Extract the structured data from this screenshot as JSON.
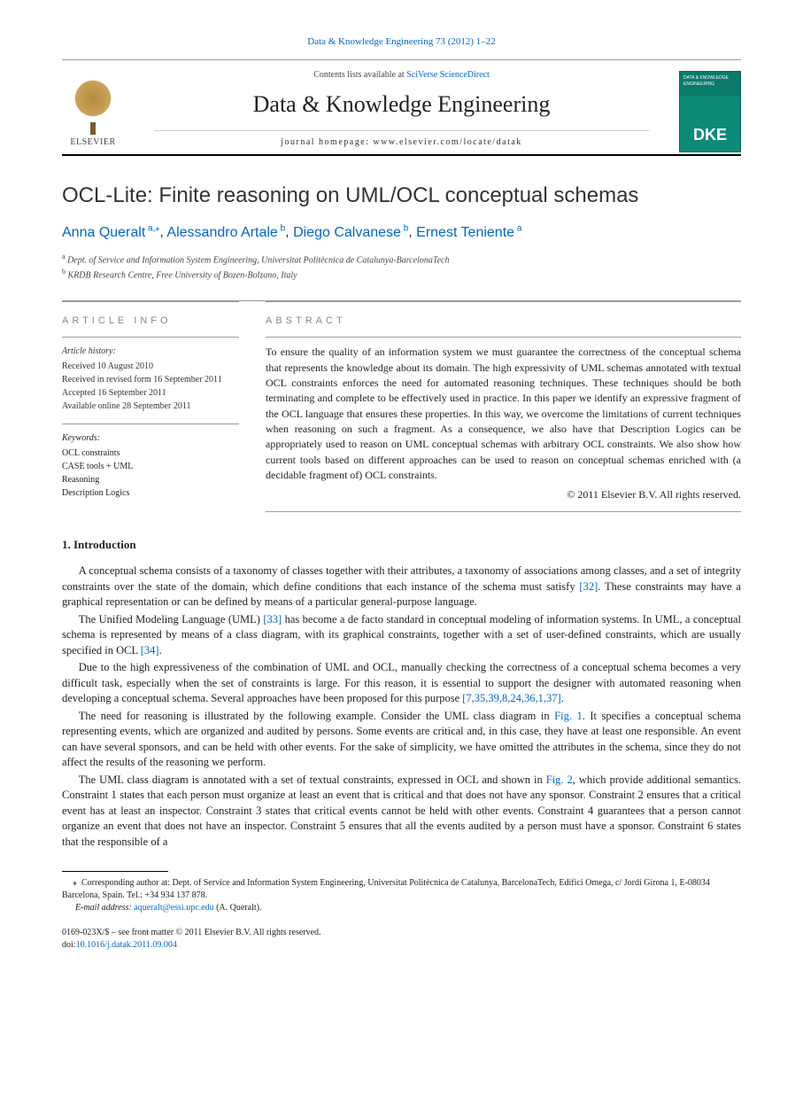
{
  "topRef": {
    "journal": "Data & Knowledge Engineering",
    "volumeIssue": "73 (2012) 1–22"
  },
  "headerBlock": {
    "contentsLine_prefix": "Contents lists available at ",
    "contentsLine_link": "SciVerse ScienceDirect",
    "journalTitle": "Data & Knowledge Engineering",
    "homepageLabel": "journal homepage: ",
    "homepageUrl": "www.elsevier.com/locate/datak",
    "elsevierName": "ELSEVIER",
    "coverLabelTop": "DATA & KNOWLEDGE ENGINEERING",
    "coverLabelAbbr": "DKE"
  },
  "article": {
    "title": "OCL-Lite: Finite reasoning on UML/OCL conceptual schemas",
    "authors": [
      {
        "name": "Anna Queralt",
        "affSup": "a,",
        "star": "⁎"
      },
      {
        "name": "Alessandro Artale",
        "affSup": "b"
      },
      {
        "name": "Diego Calvanese",
        "affSup": "b"
      },
      {
        "name": "Ernest Teniente",
        "affSup": "a"
      }
    ],
    "affiliations": [
      {
        "sup": "a",
        "text": "Dept. of Service and Information System Engineering, Universitat Politècnica de Catalunya-BarcelonaTech"
      },
      {
        "sup": "b",
        "text": "KRDB Research Centre, Free University of Bozen-Bolzano, Italy"
      }
    ]
  },
  "infoHead": "article info",
  "absHead": "abstract",
  "history": {
    "title": "Article history:",
    "lines": [
      "Received 10 August 2010",
      "Received in revised form 16 September 2011",
      "Accepted 16 September 2011",
      "Available online 28 September 2011"
    ]
  },
  "keywords": {
    "title": "Keywords:",
    "items": [
      "OCL constraints",
      "CASE tools + UML",
      "Reasoning",
      "Description Logics"
    ]
  },
  "abstractText": "To ensure the quality of an information system we must guarantee the correctness of the conceptual schema that represents the knowledge about its domain. The high expressivity of UML schemas annotated with textual OCL constraints enforces the need for automated reasoning techniques. These techniques should be both terminating and complete to be effectively used in practice. In this paper we identify an expressive fragment of the OCL language that ensures these properties. In this way, we overcome the limitations of current techniques when reasoning on such a fragment. As a consequence, we also have that Description Logics can be appropriately used to reason on UML conceptual schemas with arbitrary OCL constraints. We also show how current tools based on different approaches can be used to reason on conceptual schemas enriched with (a decidable fragment of) OCL constraints.",
  "copyright": "© 2011 Elsevier B.V. All rights reserved.",
  "sections": {
    "introHead": "1. Introduction",
    "paras": [
      {
        "pre": "A conceptual schema consists of a taxonomy of classes together with their attributes, a taxonomy of associations among classes, and a set of integrity constraints over the state of the domain, which define conditions that each instance of the schema must satisfy ",
        "link": "[32]",
        "post": ". These constraints may have a graphical representation or can be defined by means of a particular general-purpose language."
      },
      {
        "pre": "The Unified Modeling Language (UML) ",
        "link": "[33]",
        "mid": " has become a de facto standard in conceptual modeling of information systems. In UML, a conceptual schema is represented by means of a class diagram, with its graphical constraints, together with a set of user-defined constraints, which are usually specified in OCL ",
        "link2": "[34]",
        "post": "."
      },
      {
        "pre": "Due to the high expressiveness of the combination of UML and OCL, manually checking the correctness of a conceptual schema becomes a very difficult task, especially when the set of constraints is large. For this reason, it is essential to support the designer with automated reasoning when developing a conceptual schema. Several approaches have been proposed for this purpose ",
        "link": "[7,35,39,8,24,36,1,37]",
        "post": "."
      },
      {
        "pre": "The need for reasoning is illustrated by the following example. Consider the UML class diagram in ",
        "link": "Fig. 1",
        "post": ". It specifies a conceptual schema representing events, which are organized and audited by persons. Some events are critical and, in this case, they have at least one responsible. An event can have several sponsors, and can be held with other events. For the sake of simplicity, we have omitted the attributes in the schema, since they do not affect the results of the reasoning we perform."
      },
      {
        "pre": "The UML class diagram is annotated with a set of textual constraints, expressed in OCL and shown in ",
        "link": "Fig. 2",
        "post": ", which provide additional semantics. Constraint 1 states that each person must organize at least an event that is critical and that does not have any sponsor. Constraint 2 ensures that a critical event has at least an inspector. Constraint 3 states that critical events cannot be held with other events. Constraint 4 guarantees that a person cannot organize an event that does not have an inspector. Constraint 5 ensures that all the events audited by a person must have a sponsor. Constraint 6 states that the responsible of a"
      }
    ]
  },
  "footnote": {
    "starLabel": "⁎",
    "corresponding": "Corresponding author at: Dept. of Service and Information System Engineering, Universitat Politècnica de Catalunya, BarcelonaTech, Edifici Omega, c/ Jordi Girona 1, E-08034 Barcelona, Spain. Tel.: +34 934 137 878.",
    "emailLabel": "E-mail address: ",
    "email": "aqueralt@essi.upc.edu",
    "emailSuffix": " (A. Queralt)."
  },
  "bottom": {
    "issn": "0169-023X/$ – see front matter © 2011 Elsevier B.V. All rights reserved.",
    "doiLabel": "doi:",
    "doi": "10.1016/j.datak.2011.09.004"
  },
  "colors": {
    "link": "#0066cc",
    "text": "#222222",
    "rule": "#999999",
    "coverBg": "#0a7a6a"
  }
}
